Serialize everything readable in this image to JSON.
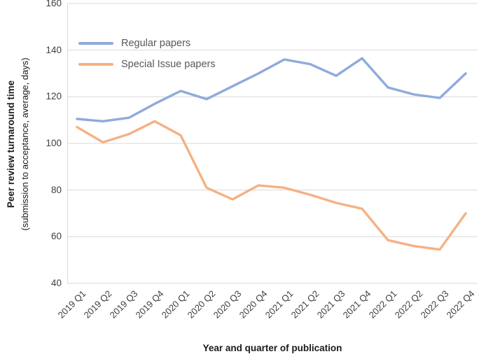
{
  "chart_data": {
    "type": "line",
    "title": "",
    "xlabel": "Year and quarter of publication",
    "ylabel_line1": "Peer review turnaround time",
    "ylabel_line2": "(submission to acceptance, average, days)",
    "categories": [
      "2019 Q1",
      "2019 Q2",
      "2019 Q3",
      "2019 Q4",
      "2020 Q1",
      "2020 Q2",
      "2020 Q3",
      "2020 Q4",
      "2021 Q1",
      "2021 Q2",
      "2021 Q3",
      "2021 Q4",
      "2022 Q1",
      "2022 Q2",
      "2022 Q3",
      "2022 Q4"
    ],
    "series": [
      {
        "name": "Regular papers",
        "color": "#8FAADC",
        "values": [
          110.5,
          109.5,
          111,
          117,
          122.5,
          119,
          124.5,
          130,
          136,
          134,
          129,
          136.5,
          124,
          121,
          119.5,
          130
        ]
      },
      {
        "name": "Special Issue papers",
        "color": "#F5B183",
        "values": [
          107,
          100.5,
          104,
          109.5,
          103.5,
          81,
          76,
          82,
          81,
          78,
          74.5,
          72,
          58.5,
          56,
          54.5,
          70
        ]
      }
    ],
    "ylim": [
      40,
      160
    ],
    "ytick_step": 20,
    "grid": "horizontal",
    "legend_position": "top-left-inside"
  },
  "colors": {
    "gridline": "#D9D9D9",
    "tick_label": "#404040",
    "legend_text": "#595959",
    "axis_title": "#1A1A1A"
  }
}
